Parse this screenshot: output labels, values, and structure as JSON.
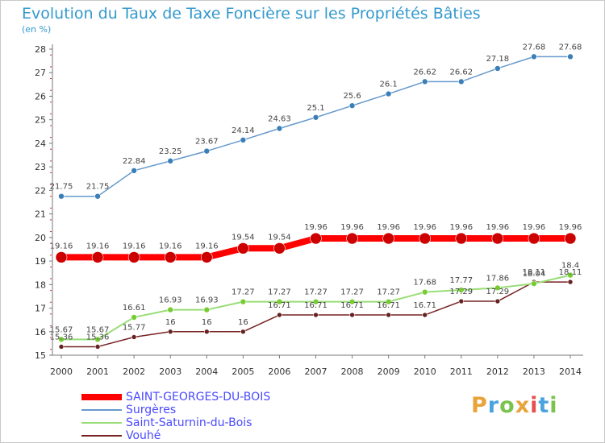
{
  "title": "Evolution du Taux de Taxe Foncière sur les Propriétés Bâties",
  "subtitle": "(en %)",
  "brand": {
    "text": "Proxiti",
    "colors": [
      "#e8a33a",
      "#4aa3df",
      "#7cc24e",
      "#e8a33a",
      "#e84e4e",
      "#4aa3df",
      "#7cc24e"
    ]
  },
  "chart_data": {
    "type": "line",
    "x": [
      2000,
      2001,
      2002,
      2003,
      2004,
      2005,
      2006,
      2007,
      2008,
      2009,
      2010,
      2011,
      2012,
      2013,
      2014
    ],
    "ylim": [
      15,
      28
    ],
    "yticks": [
      15,
      16,
      17,
      18,
      19,
      20,
      21,
      22,
      23,
      24,
      25,
      26,
      27,
      28
    ],
    "grid": false,
    "legend_position": "bottom-left",
    "series": [
      {
        "name": "Surgères",
        "color": "#6699cc",
        "marker": "#3a7fb8",
        "values": [
          21.75,
          21.75,
          22.84,
          23.25,
          23.67,
          24.14,
          24.63,
          25.1,
          25.6,
          26.1,
          26.62,
          26.62,
          27.18,
          27.68,
          27.68
        ],
        "labels": [
          "21.75",
          "21.75",
          "22.84",
          "23.25",
          "23.67",
          "24.14",
          "24.63",
          "25.1",
          "25.6",
          "26.1",
          "26.62",
          "26.62",
          "27.18",
          "27.68",
          "27.68"
        ]
      },
      {
        "name": "SAINT-GEORGES-DU-BOIS",
        "color": "#ff0000",
        "marker": "#cc0000",
        "values": [
          19.16,
          19.16,
          19.16,
          19.16,
          19.16,
          19.54,
          19.54,
          19.96,
          19.96,
          19.96,
          19.96,
          19.96,
          19.96,
          19.96,
          19.96
        ],
        "labels": [
          "19.16",
          "19.16",
          "19.16",
          "19.16",
          "19.16",
          "19.54",
          "19.54",
          "19.96",
          "19.96",
          "19.96",
          "19.96",
          "19.96",
          "19.96",
          "19.96",
          "19.96"
        ]
      },
      {
        "name": "Saint-Saturnin-du-Bois",
        "color": "#99dd77",
        "marker": "#77cc33",
        "values": [
          15.67,
          15.67,
          16.61,
          16.93,
          16.93,
          17.27,
          17.27,
          17.27,
          17.27,
          17.27,
          17.68,
          17.77,
          17.86,
          18.04,
          18.4
        ],
        "labels": [
          "15.67",
          "15.67",
          "16.61",
          "16.93",
          "16.93",
          "17.27",
          "17.27",
          "17.27",
          "17.27",
          "17.27",
          "17.68",
          "17.77",
          "17.86",
          "18.04",
          "18.4"
        ]
      },
      {
        "name": "Vouhé",
        "color": "#772222",
        "marker": "#662222",
        "values": [
          15.36,
          15.36,
          15.77,
          16,
          16,
          16,
          16.71,
          16.71,
          16.71,
          16.71,
          16.71,
          17.29,
          17.29,
          18.11,
          18.11
        ],
        "labels": [
          "15.36",
          "15.36",
          "15.77",
          "16",
          "16",
          "16",
          "16.71",
          "16.71",
          "16.71",
          "16.71",
          "16.71",
          "17.29",
          "17.29",
          "18.11",
          "18.11"
        ]
      }
    ]
  },
  "legend": [
    {
      "label": "SAINT-GEORGES-DU-BOIS",
      "color": "#ff0000",
      "thickness": 8
    },
    {
      "label": "Surgères",
      "color": "#6699cc",
      "thickness": 2
    },
    {
      "label": "Saint-Saturnin-du-Bois",
      "color": "#99dd77",
      "thickness": 2
    },
    {
      "label": "Vouhé",
      "color": "#772222",
      "thickness": 2
    }
  ]
}
